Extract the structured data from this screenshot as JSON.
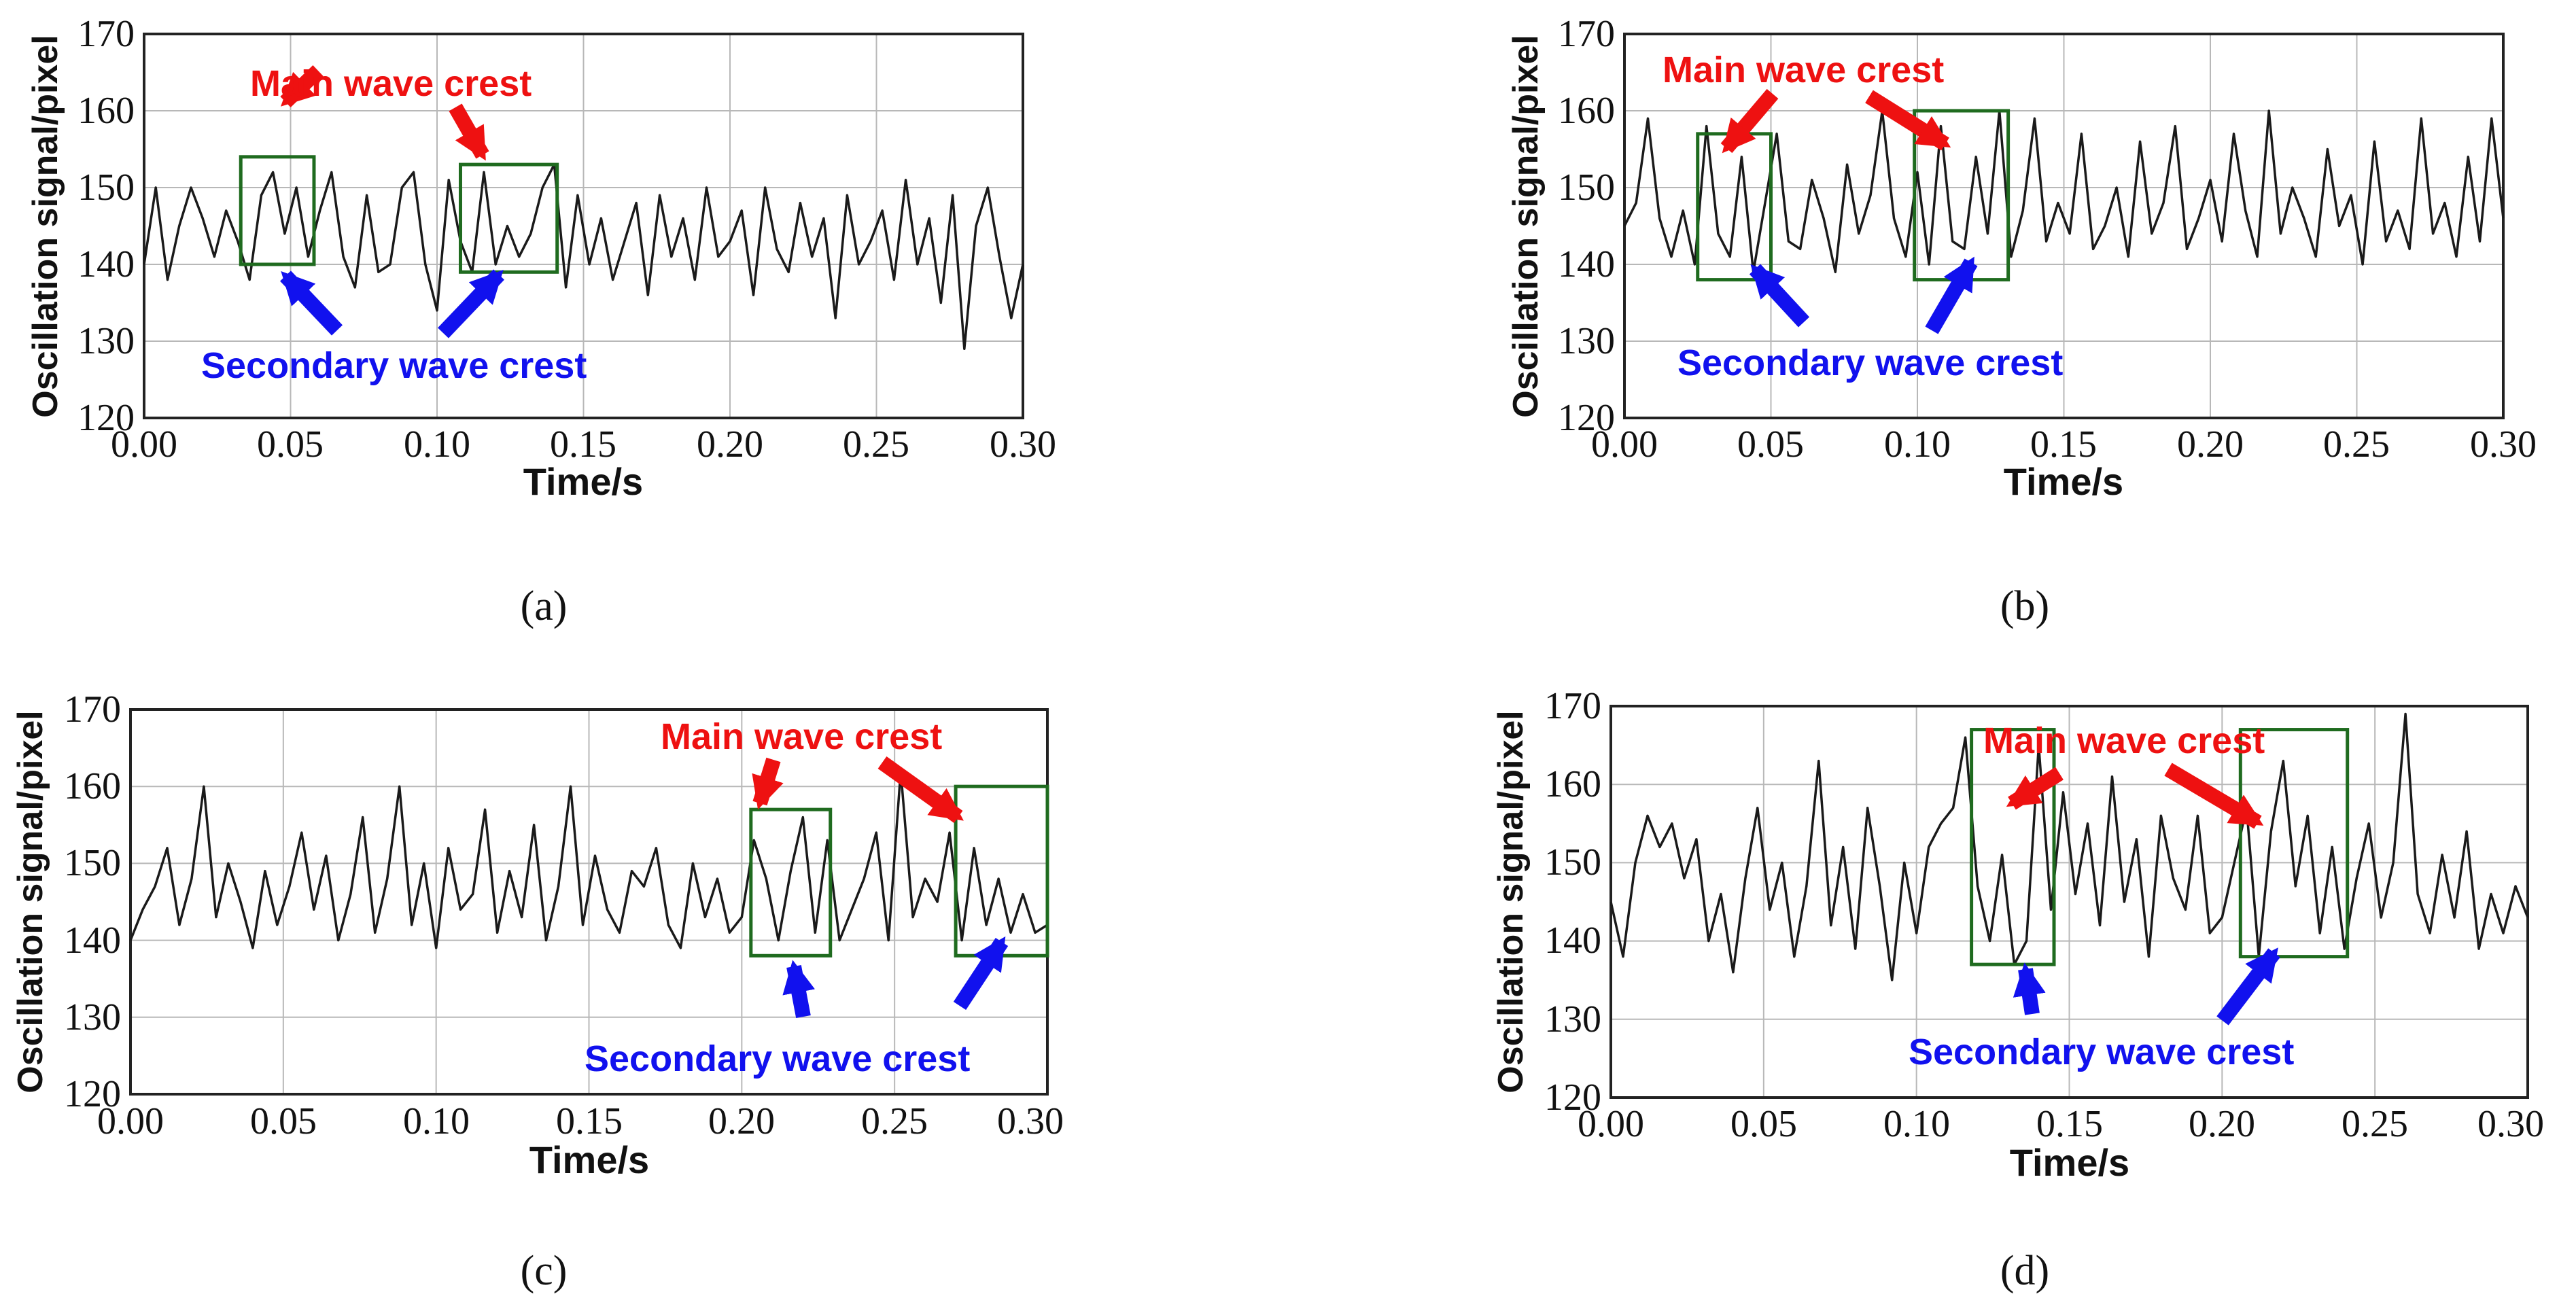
{
  "figure": {
    "colors": {
      "line": "#1a1a1a",
      "grid": "#b8b8b8",
      "box": "#1f6b1f",
      "main_arrow": "#ee1111",
      "secondary_arrow": "#1111ee"
    }
  },
  "chart_data": [
    {
      "type": "line",
      "panel_label": "(a)",
      "title": "",
      "xlabel": "Time/s",
      "ylabel": "Oscillation signal/pixel",
      "xlim": [
        0.0,
        0.3
      ],
      "ylim": [
        120,
        170
      ],
      "xticks": [
        "0.00",
        "0.05",
        "0.10",
        "0.15",
        "0.20",
        "0.25",
        "0.30"
      ],
      "yticks": [
        "120",
        "130",
        "140",
        "150",
        "160",
        "170"
      ],
      "grid": true,
      "series": [
        {
          "name": "Oscillation signal",
          "x": [
            0.0,
            0.004,
            0.008,
            0.012,
            0.016,
            0.02,
            0.024,
            0.028,
            0.032,
            0.036,
            0.04,
            0.044,
            0.048,
            0.052,
            0.056,
            0.06,
            0.064,
            0.068,
            0.072,
            0.076,
            0.08,
            0.084,
            0.088,
            0.092,
            0.096,
            0.1,
            0.104,
            0.108,
            0.112,
            0.116,
            0.12,
            0.124,
            0.128,
            0.132,
            0.136,
            0.14,
            0.144,
            0.148,
            0.152,
            0.156,
            0.16,
            0.164,
            0.168,
            0.172,
            0.176,
            0.18,
            0.184,
            0.188,
            0.192,
            0.196,
            0.2,
            0.204,
            0.208,
            0.212,
            0.216,
            0.22,
            0.224,
            0.228,
            0.232,
            0.236,
            0.24,
            0.244,
            0.248,
            0.252,
            0.256,
            0.26,
            0.264,
            0.268,
            0.272,
            0.276,
            0.28,
            0.284,
            0.288,
            0.292,
            0.296,
            0.3
          ],
          "values": [
            140,
            150,
            138,
            145,
            150,
            146,
            141,
            147,
            143,
            138,
            149,
            152,
            144,
            150,
            141,
            147,
            152,
            141,
            137,
            149,
            139,
            140,
            150,
            152,
            140,
            134,
            151,
            143,
            139,
            152,
            140,
            145,
            141,
            144,
            150,
            153,
            137,
            149,
            140,
            146,
            138,
            143,
            148,
            136,
            149,
            141,
            146,
            138,
            150,
            141,
            143,
            147,
            136,
            150,
            142,
            139,
            148,
            141,
            146,
            133,
            149,
            140,
            143,
            147,
            138,
            151,
            140,
            146,
            135,
            149,
            129,
            145,
            150,
            141,
            133,
            140
          ]
        }
      ],
      "annotations": {
        "main_label": "Main wave crest",
        "secondary_label": "Secondary wave crest",
        "boxes": [
          {
            "x0": 0.033,
            "x1": 0.058,
            "y0": 140,
            "y1": 154
          },
          {
            "x0": 0.108,
            "x1": 0.141,
            "y0": 139,
            "y1": 153
          }
        ]
      }
    },
    {
      "type": "line",
      "panel_label": "(b)",
      "title": "",
      "xlabel": "Time/s",
      "ylabel": "Oscillation signal/pixel",
      "xlim": [
        0.0,
        0.3
      ],
      "ylim": [
        120,
        170
      ],
      "xticks": [
        "0.00",
        "0.05",
        "0.10",
        "0.15",
        "0.20",
        "0.25",
        "0.30"
      ],
      "yticks": [
        "120",
        "130",
        "140",
        "150",
        "160",
        "170"
      ],
      "grid": true,
      "series": [
        {
          "name": "Oscillation signal",
          "x": [
            0.0,
            0.004,
            0.008,
            0.012,
            0.016,
            0.02,
            0.024,
            0.028,
            0.032,
            0.036,
            0.04,
            0.044,
            0.048,
            0.052,
            0.056,
            0.06,
            0.064,
            0.068,
            0.072,
            0.076,
            0.08,
            0.084,
            0.088,
            0.092,
            0.096,
            0.1,
            0.104,
            0.108,
            0.112,
            0.116,
            0.12,
            0.124,
            0.128,
            0.132,
            0.136,
            0.14,
            0.144,
            0.148,
            0.152,
            0.156,
            0.16,
            0.164,
            0.168,
            0.172,
            0.176,
            0.18,
            0.184,
            0.188,
            0.192,
            0.196,
            0.2,
            0.204,
            0.208,
            0.212,
            0.216,
            0.22,
            0.224,
            0.228,
            0.232,
            0.236,
            0.24,
            0.244,
            0.248,
            0.252,
            0.256,
            0.26,
            0.264,
            0.268,
            0.272,
            0.276,
            0.28,
            0.284,
            0.288,
            0.292,
            0.296,
            0.3
          ],
          "values": [
            145,
            148,
            159,
            146,
            141,
            147,
            140,
            158,
            144,
            141,
            154,
            139,
            148,
            157,
            143,
            142,
            151,
            146,
            139,
            153,
            144,
            149,
            160,
            146,
            141,
            152,
            140,
            158,
            143,
            142,
            154,
            144,
            160,
            141,
            147,
            159,
            143,
            148,
            144,
            157,
            142,
            145,
            150,
            141,
            156,
            144,
            148,
            158,
            142,
            146,
            151,
            143,
            157,
            147,
            141,
            160,
            144,
            150,
            146,
            141,
            155,
            145,
            149,
            140,
            156,
            143,
            147,
            142,
            159,
            144,
            148,
            141,
            154,
            143,
            159,
            146
          ]
        }
      ],
      "annotations": {
        "main_label": "Main wave crest",
        "secondary_label": "Secondary wave crest",
        "boxes": [
          {
            "x0": 0.025,
            "x1": 0.05,
            "y0": 138,
            "y1": 157
          },
          {
            "x0": 0.099,
            "x1": 0.131,
            "y0": 138,
            "y1": 160
          }
        ]
      }
    },
    {
      "type": "line",
      "panel_label": "(c)",
      "title": "",
      "xlabel": "Time/s",
      "ylabel": "Oscillation signal/pixel",
      "xlim": [
        0.0,
        0.3
      ],
      "ylim": [
        120,
        170
      ],
      "xticks": [
        "0.00",
        "0.05",
        "0.10",
        "0.15",
        "0.20",
        "0.25",
        "0.30"
      ],
      "yticks": [
        "120",
        "130",
        "140",
        "150",
        "160",
        "170"
      ],
      "grid": true,
      "series": [
        {
          "name": "Oscillation signal",
          "x": [
            0.0,
            0.004,
            0.008,
            0.012,
            0.016,
            0.02,
            0.024,
            0.028,
            0.032,
            0.036,
            0.04,
            0.044,
            0.048,
            0.052,
            0.056,
            0.06,
            0.064,
            0.068,
            0.072,
            0.076,
            0.08,
            0.084,
            0.088,
            0.092,
            0.096,
            0.1,
            0.104,
            0.108,
            0.112,
            0.116,
            0.12,
            0.124,
            0.128,
            0.132,
            0.136,
            0.14,
            0.144,
            0.148,
            0.152,
            0.156,
            0.16,
            0.164,
            0.168,
            0.172,
            0.176,
            0.18,
            0.184,
            0.188,
            0.192,
            0.196,
            0.2,
            0.204,
            0.208,
            0.212,
            0.216,
            0.22,
            0.224,
            0.228,
            0.232,
            0.236,
            0.24,
            0.244,
            0.248,
            0.252,
            0.256,
            0.26,
            0.264,
            0.268,
            0.272,
            0.276,
            0.28,
            0.284,
            0.288,
            0.292,
            0.296,
            0.3
          ],
          "values": [
            140,
            144,
            147,
            152,
            142,
            148,
            160,
            143,
            150,
            145,
            139,
            149,
            142,
            147,
            154,
            144,
            151,
            140,
            146,
            156,
            141,
            148,
            160,
            142,
            150,
            139,
            152,
            144,
            146,
            157,
            141,
            149,
            143,
            155,
            140,
            147,
            160,
            142,
            151,
            144,
            141,
            149,
            147,
            152,
            142,
            139,
            150,
            143,
            148,
            141,
            143,
            153,
            148,
            140,
            149,
            156,
            141,
            153,
            140,
            144,
            148,
            154,
            140,
            162,
            143,
            148,
            145,
            154,
            140,
            152,
            142,
            148,
            141,
            146,
            141,
            142
          ]
        }
      ],
      "annotations": {
        "main_label": "Main wave crest",
        "secondary_label": "Secondary wave crest",
        "boxes": [
          {
            "x0": 0.203,
            "x1": 0.229,
            "y0": 138,
            "y1": 157
          },
          {
            "x0": 0.27,
            "x1": 0.304,
            "y0": 138,
            "y1": 160
          }
        ]
      }
    },
    {
      "type": "line",
      "panel_label": "(d)",
      "title": "",
      "xlabel": "Time/s",
      "ylabel": "Oscillation signal/pixel",
      "xlim": [
        0.0,
        0.3
      ],
      "ylim": [
        120,
        170
      ],
      "xticks": [
        "0.00",
        "0.05",
        "0.10",
        "0.15",
        "0.20",
        "0.25",
        "0.30"
      ],
      "yticks": [
        "120",
        "130",
        "140",
        "150",
        "160",
        "170"
      ],
      "grid": true,
      "series": [
        {
          "name": "Oscillation signal",
          "x": [
            0.0,
            0.004,
            0.008,
            0.012,
            0.016,
            0.02,
            0.024,
            0.028,
            0.032,
            0.036,
            0.04,
            0.044,
            0.048,
            0.052,
            0.056,
            0.06,
            0.064,
            0.068,
            0.072,
            0.076,
            0.08,
            0.084,
            0.088,
            0.092,
            0.096,
            0.1,
            0.104,
            0.108,
            0.112,
            0.116,
            0.12,
            0.124,
            0.128,
            0.132,
            0.136,
            0.14,
            0.144,
            0.148,
            0.152,
            0.156,
            0.16,
            0.164,
            0.168,
            0.172,
            0.176,
            0.18,
            0.184,
            0.188,
            0.192,
            0.196,
            0.2,
            0.204,
            0.208,
            0.212,
            0.216,
            0.22,
            0.224,
            0.228,
            0.232,
            0.236,
            0.24,
            0.244,
            0.248,
            0.252,
            0.256,
            0.26,
            0.264,
            0.268,
            0.272,
            0.276,
            0.28,
            0.284,
            0.288,
            0.292,
            0.296,
            0.3
          ],
          "values": [
            145,
            138,
            150,
            156,
            152,
            155,
            148,
            153,
            140,
            146,
            136,
            148,
            157,
            144,
            150,
            138,
            147,
            163,
            142,
            152,
            139,
            157,
            147,
            135,
            150,
            141,
            152,
            155,
            157,
            166,
            147,
            140,
            151,
            137,
            140,
            165,
            144,
            159,
            146,
            155,
            142,
            161,
            145,
            153,
            138,
            156,
            148,
            144,
            156,
            141,
            143,
            150,
            157,
            138,
            154,
            163,
            147,
            156,
            141,
            152,
            139,
            148,
            155,
            143,
            150,
            169,
            146,
            141,
            151,
            143,
            154,
            139,
            146,
            141,
            147,
            143
          ]
        }
      ],
      "annotations": {
        "main_label": "Main wave crest",
        "secondary_label": "Secondary wave crest",
        "boxes": [
          {
            "x0": 0.118,
            "x1": 0.145,
            "y0": 137,
            "y1": 167
          },
          {
            "x0": 0.206,
            "x1": 0.241,
            "y0": 138,
            "y1": 167
          }
        ]
      }
    }
  ]
}
